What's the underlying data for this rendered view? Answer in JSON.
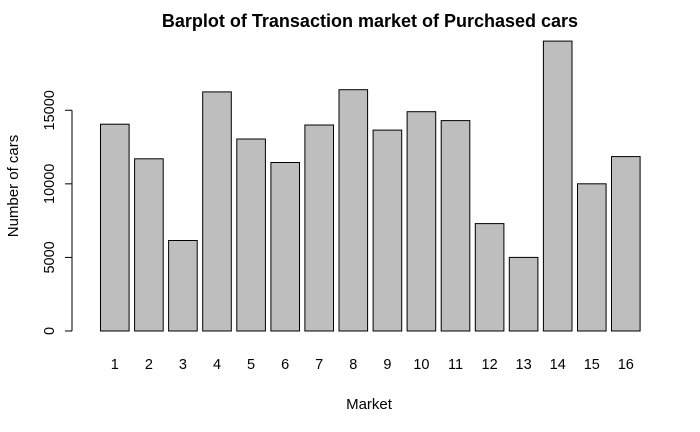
{
  "chart_data": {
    "type": "bar",
    "title": "Barplot of Transaction market of Purchased cars",
    "xlabel": "Market",
    "ylabel": "Number of cars",
    "categories": [
      "1",
      "2",
      "3",
      "4",
      "5",
      "6",
      "7",
      "8",
      "9",
      "10",
      "11",
      "12",
      "13",
      "14",
      "15",
      "16"
    ],
    "values": [
      14050,
      11700,
      6150,
      16250,
      13050,
      11450,
      14000,
      16400,
      13650,
      14900,
      14300,
      7300,
      5000,
      19700,
      10000,
      11850
    ],
    "yticks": [
      0,
      5000,
      10000,
      15000
    ],
    "ytick_labels": [
      "0",
      "5000",
      "10000",
      "15000"
    ],
    "ylim": [
      0,
      20000
    ],
    "grid": false,
    "bar_color": "#bebebe",
    "bar_border_color": "#000000",
    "background": "#ffffff"
  }
}
